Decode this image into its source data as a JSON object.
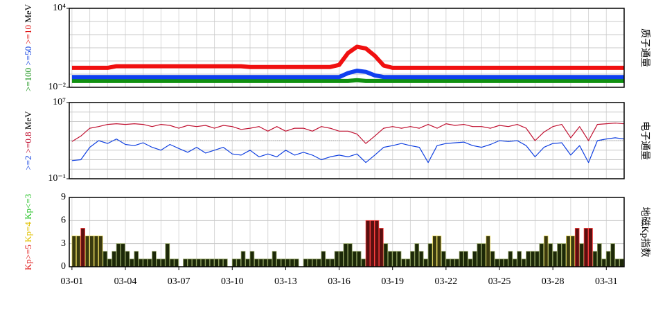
{
  "chart_data": [
    {
      "type": "line",
      "log_scale": true,
      "ylim": [
        0.01,
        10000
      ],
      "yticks": [
        {
          "value": 0.01,
          "label": "10⁻²"
        },
        {
          "value": 10000,
          "label": "10⁴"
        }
      ],
      "xlim": [
        0.85,
        32
      ],
      "grid": true,
      "ylabel": [
        {
          "text": ">=100",
          "color": "#109010"
        },
        {
          "text": ">=50",
          "color": "#1040e0"
        },
        {
          "text": ">=10",
          "color": "#e01010"
        },
        {
          "text": "MeV",
          "color": "#000000"
        }
      ],
      "side_label": "质子通量",
      "x": [
        1,
        1.5,
        2,
        2.5,
        3,
        3.5,
        4,
        4.5,
        5,
        5.5,
        6,
        6.5,
        7,
        7.5,
        8,
        8.5,
        9,
        9.5,
        10,
        10.5,
        11,
        11.5,
        12,
        12.5,
        13,
        13.5,
        14,
        14.5,
        15,
        15.5,
        16,
        16.5,
        17,
        17.5,
        18,
        18.5,
        19,
        19.5,
        20,
        20.5,
        21,
        21.5,
        22,
        22.5,
        23,
        23.5,
        24,
        24.5,
        25,
        25.5,
        26,
        26.5,
        27,
        27.5,
        28,
        28.5,
        29,
        29.5,
        30,
        30.5,
        31,
        31.5,
        32
      ],
      "series": [
        {
          "color": "#109010",
          "values": [
            0.03,
            0.03,
            0.03,
            0.03,
            0.03,
            0.03,
            0.03,
            0.03,
            0.03,
            0.03,
            0.03,
            0.03,
            0.03,
            0.03,
            0.03,
            0.03,
            0.03,
            0.03,
            0.03,
            0.03,
            0.03,
            0.03,
            0.03,
            0.03,
            0.03,
            0.03,
            0.03,
            0.03,
            0.03,
            0.03,
            0.03,
            0.03,
            0.035,
            0.03,
            0.03,
            0.03,
            0.03,
            0.03,
            0.03,
            0.03,
            0.03,
            0.03,
            0.03,
            0.03,
            0.03,
            0.03,
            0.03,
            0.03,
            0.03,
            0.03,
            0.03,
            0.03,
            0.03,
            0.03,
            0.03,
            0.03,
            0.03,
            0.03,
            0.03,
            0.03,
            0.03,
            0.03,
            0.03
          ]
        },
        {
          "color": "#1040f0",
          "values": [
            0.06,
            0.06,
            0.06,
            0.06,
            0.06,
            0.06,
            0.06,
            0.06,
            0.06,
            0.06,
            0.06,
            0.06,
            0.06,
            0.06,
            0.06,
            0.06,
            0.06,
            0.06,
            0.06,
            0.06,
            0.06,
            0.06,
            0.06,
            0.06,
            0.06,
            0.06,
            0.06,
            0.06,
            0.06,
            0.06,
            0.06,
            0.12,
            0.18,
            0.15,
            0.08,
            0.06,
            0.06,
            0.06,
            0.06,
            0.06,
            0.06,
            0.06,
            0.06,
            0.06,
            0.06,
            0.06,
            0.06,
            0.06,
            0.06,
            0.06,
            0.06,
            0.06,
            0.06,
            0.06,
            0.06,
            0.06,
            0.06,
            0.06,
            0.06,
            0.06,
            0.06,
            0.06,
            0.06
          ]
        },
        {
          "color": "#f01010",
          "values": [
            0.3,
            0.3,
            0.3,
            0.3,
            0.3,
            0.4,
            0.4,
            0.4,
            0.4,
            0.4,
            0.4,
            0.4,
            0.4,
            0.4,
            0.4,
            0.4,
            0.4,
            0.4,
            0.4,
            0.4,
            0.35,
            0.35,
            0.35,
            0.35,
            0.35,
            0.35,
            0.35,
            0.35,
            0.35,
            0.35,
            0.5,
            4,
            12,
            9,
            2.5,
            0.45,
            0.3,
            0.3,
            0.3,
            0.3,
            0.3,
            0.3,
            0.3,
            0.3,
            0.3,
            0.3,
            0.3,
            0.3,
            0.3,
            0.3,
            0.3,
            0.3,
            0.3,
            0.3,
            0.3,
            0.3,
            0.3,
            0.3,
            0.3,
            0.3,
            0.3,
            0.3,
            0.3
          ]
        }
      ]
    },
    {
      "type": "line",
      "log_scale": true,
      "ylim": [
        0.1,
        10000000
      ],
      "yticks": [
        {
          "value": 0.1,
          "label": "10⁻¹"
        },
        {
          "value": 10000000,
          "label": "10⁷"
        }
      ],
      "xlim": [
        0.85,
        32
      ],
      "grid": true,
      "ref_line": 1000,
      "ylabel": [
        {
          "text": ">=2",
          "color": "#1040e0"
        },
        {
          "text": ">=0.8",
          "color": "#c01030"
        },
        {
          "text": "MeV",
          "color": "#000000"
        }
      ],
      "side_label": "电子通量",
      "x": [
        1,
        1.5,
        2,
        2.5,
        3,
        3.5,
        4,
        4.5,
        5,
        5.5,
        6,
        6.5,
        7,
        7.5,
        8,
        8.5,
        9,
        9.5,
        10,
        10.5,
        11,
        11.5,
        12,
        12.5,
        13,
        13.5,
        14,
        14.5,
        15,
        15.5,
        16,
        16.5,
        17,
        17.5,
        18,
        18.5,
        19,
        19.5,
        20,
        20.5,
        21,
        21.5,
        22,
        22.5,
        23,
        23.5,
        24,
        24.5,
        25,
        25.5,
        26,
        26.5,
        27,
        27.5,
        28,
        28.5,
        29,
        29.5,
        30,
        30.5,
        31,
        31.5,
        32
      ],
      "series": [
        {
          "color": "#c01030",
          "values": [
            800,
            3000,
            20000,
            30000,
            50000,
            60000,
            50000,
            60000,
            50000,
            30000,
            50000,
            40000,
            20000,
            40000,
            30000,
            40000,
            20000,
            40000,
            30000,
            15000,
            20000,
            30000,
            10000,
            30000,
            10000,
            20000,
            20000,
            10000,
            30000,
            20000,
            10000,
            10000,
            5000,
            500,
            3000,
            20000,
            30000,
            20000,
            30000,
            20000,
            50000,
            20000,
            60000,
            40000,
            50000,
            30000,
            30000,
            20000,
            40000,
            30000,
            50000,
            20000,
            1000,
            8000,
            30000,
            50000,
            2000,
            30000,
            1000,
            50000,
            60000,
            70000,
            60000
          ]
        },
        {
          "color": "#1040e0",
          "values": [
            8,
            10,
            200,
            1000,
            500,
            1500,
            400,
            300,
            600,
            200,
            100,
            400,
            150,
            60,
            200,
            50,
            100,
            200,
            40,
            30,
            100,
            20,
            40,
            20,
            100,
            30,
            60,
            30,
            10,
            20,
            30,
            20,
            40,
            5,
            30,
            200,
            300,
            500,
            300,
            200,
            5,
            300,
            500,
            600,
            700,
            300,
            200,
            400,
            1000,
            800,
            1000,
            300,
            20,
            200,
            500,
            600,
            30,
            300,
            5,
            1000,
            1500,
            2000,
            1500
          ]
        }
      ]
    },
    {
      "type": "bar",
      "ylim": [
        0,
        9
      ],
      "yticks": [
        0,
        3,
        6,
        9
      ],
      "xlim": [
        0.85,
        32
      ],
      "grid": true,
      "ylabel": [
        {
          "text": "Kp>=5",
          "color": "#e02020"
        },
        {
          "text": "Kp=4",
          "color": "#e0c000"
        },
        {
          "text": "Kp<=3",
          "color": "#20c020"
        }
      ],
      "levels": [
        {
          "min": 5,
          "fill": "#5a1010",
          "stroke": "#ff3a3a"
        },
        {
          "min": 4,
          "fill": "#3a3a10",
          "stroke": "#f0e060"
        },
        {
          "min": 0,
          "fill": "#1c2808",
          "stroke": "#8fa060"
        }
      ],
      "side_label": "地磁Kp指数",
      "xticks": [
        {
          "value": 1,
          "label": "03-01"
        },
        {
          "value": 4,
          "label": "03-04"
        },
        {
          "value": 7,
          "label": "03-07"
        },
        {
          "value": 10,
          "label": "03-10"
        },
        {
          "value": 13,
          "label": "03-13"
        },
        {
          "value": 16,
          "label": "03-16"
        },
        {
          "value": 19,
          "label": "03-19"
        },
        {
          "value": 22,
          "label": "03-22"
        },
        {
          "value": 25,
          "label": "03-25"
        },
        {
          "value": 28,
          "label": "03-28"
        },
        {
          "value": 31,
          "label": "03-31"
        }
      ],
      "x": [
        1,
        1.25,
        1.5,
        1.75,
        2,
        2.25,
        2.5,
        2.75,
        3,
        3.25,
        3.5,
        3.75,
        4,
        4.25,
        4.5,
        4.75,
        5,
        5.25,
        5.5,
        5.75,
        6,
        6.25,
        6.5,
        6.75,
        7,
        7.25,
        7.5,
        7.75,
        8,
        8.25,
        8.5,
        8.75,
        9,
        9.25,
        9.5,
        9.75,
        10,
        10.25,
        10.5,
        10.75,
        11,
        11.25,
        11.5,
        11.75,
        12,
        12.25,
        12.5,
        12.75,
        13,
        13.25,
        13.5,
        13.75,
        14,
        14.25,
        14.5,
        14.75,
        15,
        15.25,
        15.5,
        15.75,
        16,
        16.25,
        16.5,
        16.75,
        17,
        17.25,
        17.5,
        17.75,
        18,
        18.25,
        18.5,
        18.75,
        19,
        19.25,
        19.5,
        19.75,
        20,
        20.25,
        20.5,
        20.75,
        21,
        21.25,
        21.5,
        21.75,
        22,
        22.25,
        22.5,
        22.75,
        23,
        23.25,
        23.5,
        23.75,
        24,
        24.25,
        24.5,
        24.75,
        25,
        25.25,
        25.5,
        25.75,
        26,
        26.25,
        26.5,
        26.75,
        27,
        27.25,
        27.5,
        27.75,
        28,
        28.25,
        28.5,
        28.75,
        29,
        29.25,
        29.5,
        29.75,
        30,
        30.25,
        30.5,
        30.75,
        31,
        31.25,
        31.5,
        31.75
      ],
      "values": [
        4,
        4,
        5,
        4,
        4,
        4,
        4,
        2,
        1,
        2,
        3,
        3,
        2,
        1,
        2,
        1,
        1,
        1,
        2,
        1,
        1,
        3,
        1,
        1,
        0,
        1,
        1,
        1,
        1,
        1,
        1,
        1,
        1,
        1,
        1,
        0,
        1,
        1,
        2,
        1,
        2,
        1,
        1,
        1,
        1,
        2,
        1,
        1,
        1,
        1,
        1,
        0,
        1,
        1,
        1,
        1,
        2,
        1,
        1,
        2,
        2,
        3,
        3,
        2,
        2,
        1,
        6,
        6,
        6,
        5,
        3,
        2,
        2,
        2,
        1,
        1,
        2,
        3,
        2,
        1,
        3,
        4,
        4,
        2,
        1,
        1,
        1,
        2,
        2,
        1,
        2,
        3,
        3,
        4,
        2,
        1,
        1,
        1,
        2,
        1,
        2,
        1,
        2,
        2,
        2,
        3,
        4,
        3,
        2,
        3,
        3,
        4,
        4,
        5,
        3,
        5,
        5,
        2,
        3,
        1,
        2,
        3,
        1,
        1
      ]
    }
  ]
}
